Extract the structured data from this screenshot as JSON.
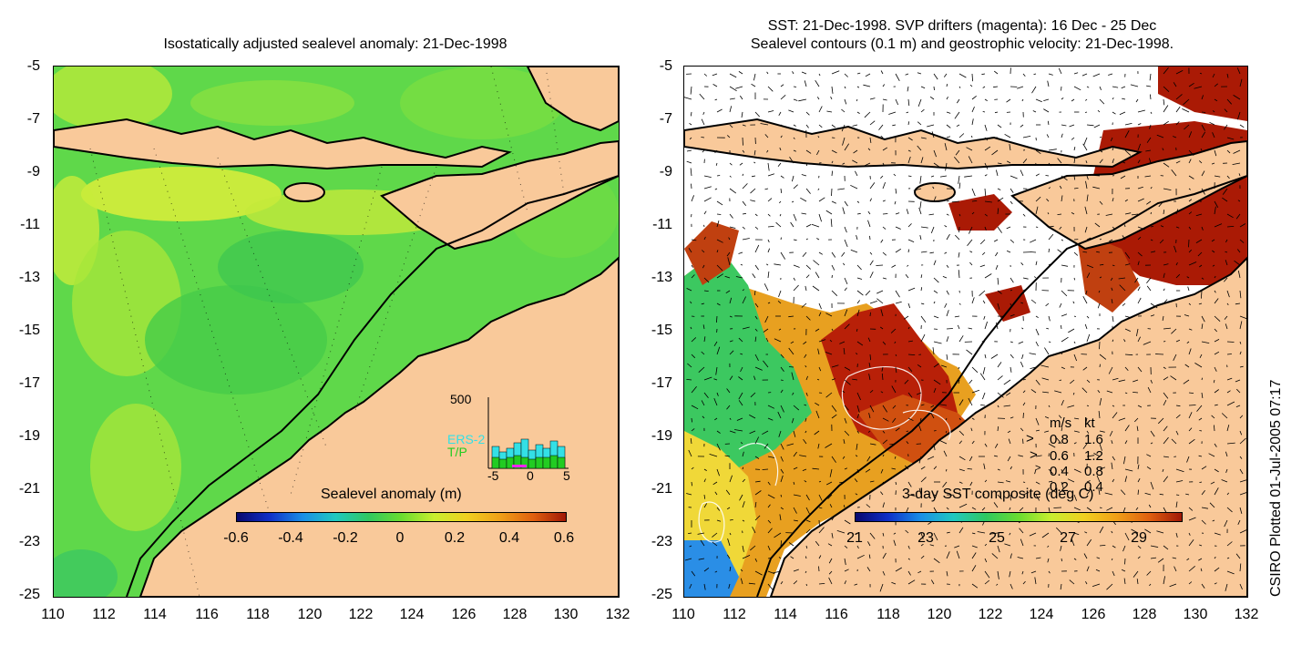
{
  "left_panel": {
    "title": "Isostatically adjusted sealevel anomaly: 21-Dec-1998",
    "colorbar_label": "Sealevel anomaly (m)",
    "colorbar_ticks": [
      "-0.6",
      "-0.4",
      "-0.2",
      "0",
      "0.2",
      "0.4",
      "0.6"
    ],
    "y_ticks": [
      "-5",
      "-7",
      "-9",
      "-11",
      "-13",
      "-15",
      "-17",
      "-19",
      "-21",
      "-23",
      "-25"
    ],
    "x_ticks": [
      "110",
      "112",
      "114",
      "116",
      "118",
      "120",
      "122",
      "124",
      "126",
      "128",
      "130",
      "132"
    ],
    "inset": {
      "ymax_label": "500",
      "series": [
        "ERS-2",
        "T/P"
      ],
      "series_colors": [
        "#33e0e6",
        "#22cc22"
      ],
      "x_ticks": [
        "-5",
        "0",
        "5"
      ]
    }
  },
  "right_panel": {
    "title_line1": "SST: 21-Dec-1998. SVP drifters (magenta): 16 Dec - 25 Dec",
    "title_line2": "Sealevel contours (0.1 m) and geostrophic velocity: 21-Dec-1998.",
    "colorbar_label": "3-day SST composite (deg C)",
    "colorbar_ticks": [
      "21",
      "23",
      "25",
      "27",
      "29"
    ],
    "y_ticks": [
      "-5",
      "-7",
      "-9",
      "-11",
      "-13",
      "-15",
      "-17",
      "-19",
      "-21",
      "-23",
      "-25"
    ],
    "x_ticks": [
      "110",
      "112",
      "114",
      "116",
      "118",
      "120",
      "122",
      "124",
      "126",
      "128",
      "130",
      "132"
    ],
    "vector_legend": {
      "header_ms": "m/s",
      "header_kt": "kt",
      "rows": [
        {
          "ms": "0.8",
          "kt": "1.6"
        },
        {
          "ms": "0.6",
          "kt": "1.2"
        },
        {
          "ms": "0.4",
          "kt": "0.8"
        },
        {
          "ms": "0.2",
          "kt": "0.4"
        }
      ]
    }
  },
  "stamp": "CSIRO Plotted 01-Jul-2005 07:17",
  "colors": {
    "land": "#f9c99a",
    "sea_green": "#4fd24a",
    "sea_lime": "#9ee83a",
    "sea_yellow": "#e8e83a",
    "sst_red": "#aa1a05",
    "sst_orange": "#dd6a10",
    "sst_blue": "#2a8ee6"
  }
}
